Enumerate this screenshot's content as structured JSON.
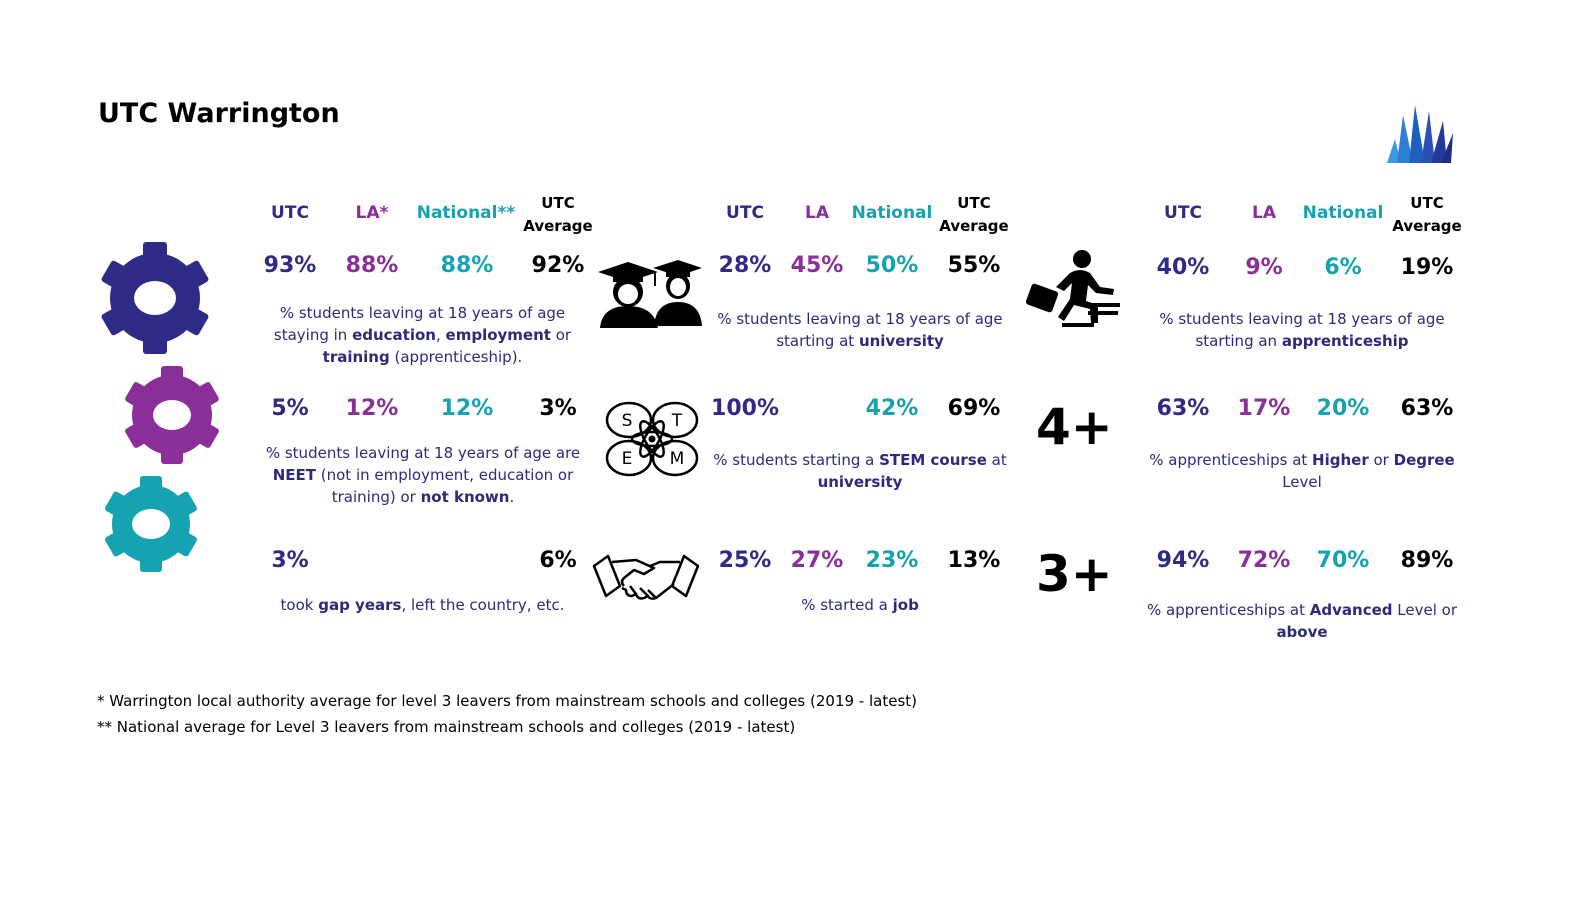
{
  "title": "UTC Warrington",
  "colors": {
    "utc": "#2f2a85",
    "la": "#8a2f99",
    "national": "#16a2b0",
    "average": "#000000"
  },
  "headers": {
    "col1": {
      "utc": "UTC",
      "la": "LA*",
      "national": "National**",
      "avg_line1": "UTC",
      "avg_line2": "Average"
    },
    "col2": {
      "utc": "UTC",
      "la": "LA",
      "national": "National",
      "avg_line1": "UTC",
      "avg_line2": "Average"
    },
    "col3": {
      "utc": "UTC",
      "la": "LA",
      "national": "National",
      "avg_line1": "UTC",
      "avg_line2": "Average"
    }
  },
  "col1": [
    {
      "icon": "gear-icon-purple-dark",
      "utc": "93%",
      "la": "88%",
      "national": "88%",
      "avg": "92%",
      "desc": [
        {
          "t": "% students leaving at 18 years of age staying in "
        },
        {
          "t": "education",
          "b": true
        },
        {
          "t": ", "
        },
        {
          "t": "employment",
          "b": true
        },
        {
          "t": " or "
        },
        {
          "t": "training",
          "b": true
        },
        {
          "t": " (apprenticeship)."
        }
      ]
    },
    {
      "icon": "gear-icon-purple",
      "utc": "5%",
      "la": "12%",
      "national": "12%",
      "avg": "3%",
      "desc": [
        {
          "t": "% students leaving at 18 years of age are "
        },
        {
          "t": "NEET",
          "b": true
        },
        {
          "t": " (not in employment, education or training) or "
        },
        {
          "t": "not known",
          "b": true
        },
        {
          "t": "."
        }
      ]
    },
    {
      "icon": "gear-icon-teal",
      "utc": "3%",
      "la": "",
      "national": "",
      "avg": "6%",
      "desc": [
        {
          "t": "took "
        },
        {
          "t": "gap years",
          "b": true
        },
        {
          "t": ", left the country, etc."
        }
      ]
    }
  ],
  "col2": [
    {
      "icon": "graduates-icon",
      "utc": "28%",
      "la": "45%",
      "national": "50%",
      "avg": "55%",
      "desc": [
        {
          "t": "% students leaving at 18 years of age starting at "
        },
        {
          "t": "university",
          "b": true
        }
      ]
    },
    {
      "icon": "stem-atom-icon",
      "icon_letters": [
        "S",
        "T",
        "E",
        "M"
      ],
      "utc": "100%",
      "la": "",
      "national": "42%",
      "avg": "69%",
      "desc": [
        {
          "t": "% students starting a "
        },
        {
          "t": "STEM course",
          "b": true
        },
        {
          "t": " at "
        },
        {
          "t": "university",
          "b": true
        }
      ]
    },
    {
      "icon": "handshake-icon",
      "utc": "25%",
      "la": "27%",
      "national": "23%",
      "avg": "13%",
      "desc": [
        {
          "t": "% started a "
        },
        {
          "t": "job",
          "b": true
        }
      ]
    }
  ],
  "col3": [
    {
      "icon": "climbing-steps-icon",
      "utc": "40%",
      "la": "9%",
      "national": "6%",
      "avg": "19%",
      "desc": [
        {
          "t": "% students leaving at 18 years of age starting an "
        },
        {
          "t": "apprenticeship",
          "b": true
        }
      ]
    },
    {
      "big": "4+",
      "utc": "63%",
      "la": "17%",
      "national": "20%",
      "avg": "63%",
      "desc": [
        {
          "t": "% apprenticeships at "
        },
        {
          "t": "Higher",
          "b": true
        },
        {
          "t": " or "
        },
        {
          "t": "Degree",
          "b": true
        },
        {
          "t": " Level"
        }
      ]
    },
    {
      "big": "3+",
      "utc": "94%",
      "la": "72%",
      "national": "70%",
      "avg": "89%",
      "desc": [
        {
          "t": "% apprenticeships at "
        },
        {
          "t": "Advanced",
          "b": true
        },
        {
          "t": " Level or "
        },
        {
          "t": "above",
          "b": true
        }
      ]
    }
  ],
  "footnotes": [
    "* Warrington local authority average for level 3 leavers from mainstream schools and colleges (2019 - latest)",
    "** National average for Level 3 leavers from mainstream schools and colleges (2019 - latest)"
  ],
  "logo": "utc-logo-icon"
}
